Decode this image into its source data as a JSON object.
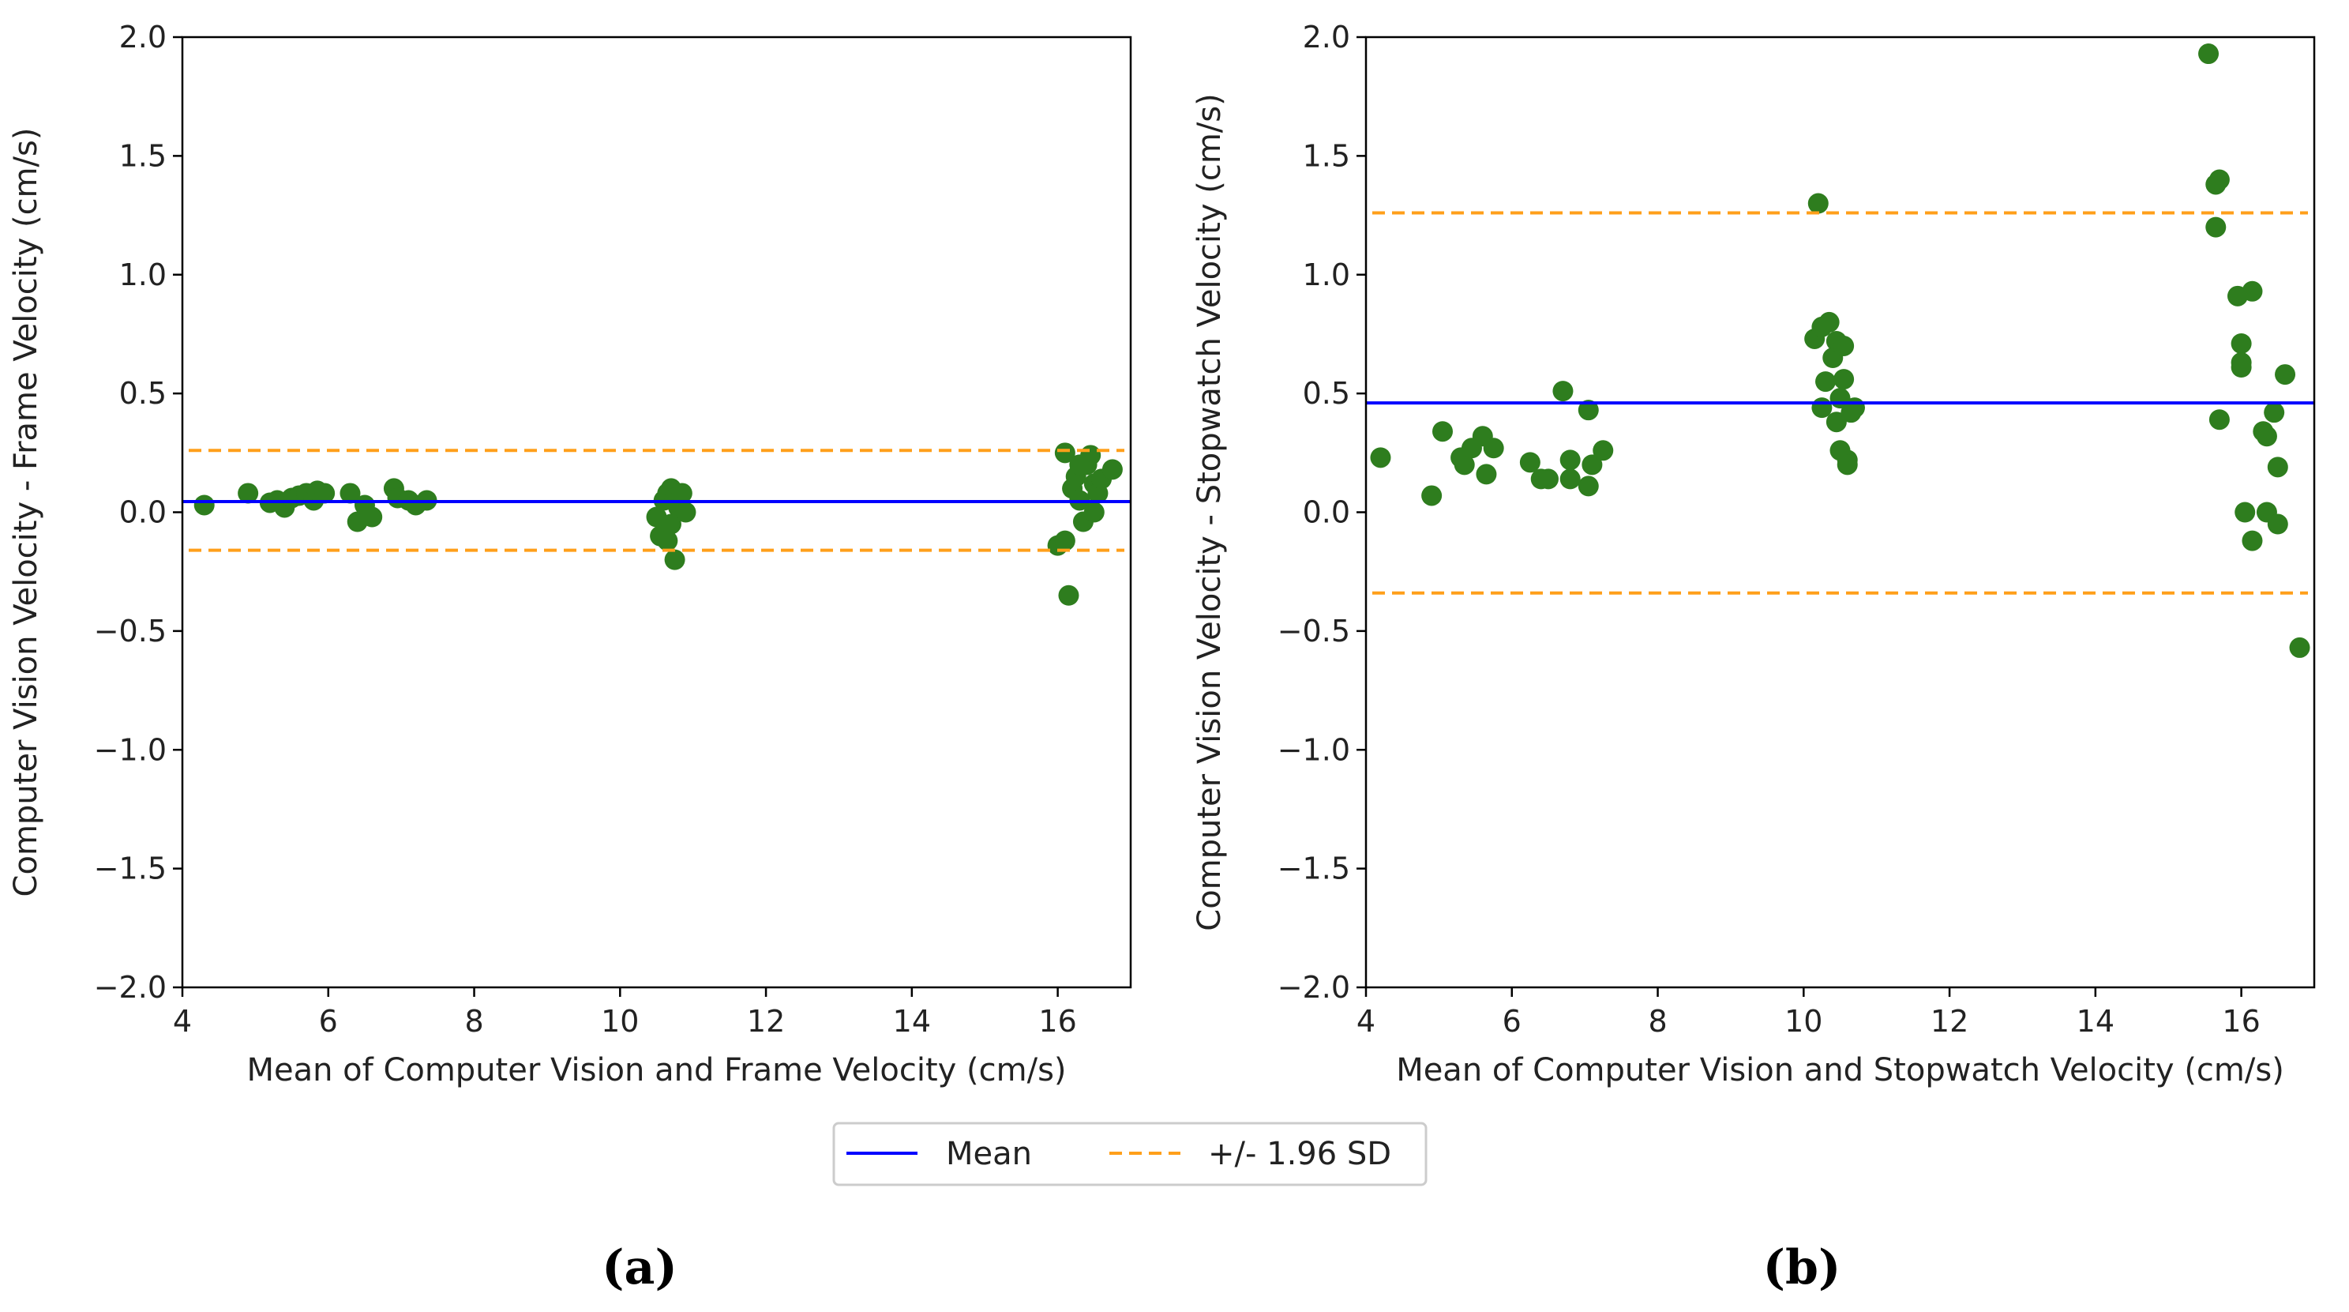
{
  "colors": {
    "mean": "#0000ff",
    "sd": "#ff9f1a",
    "points": "#2e7d1e"
  },
  "legend": {
    "mean_label": "Mean",
    "sd_label": "+/- 1.96 SD",
    "placement": "bottom-center"
  },
  "chart_data": [
    {
      "type": "scatter",
      "caption": "(a)",
      "xlabel": "Mean of Computer Vision and Frame Velocity (cm/s)",
      "ylabel": "Computer Vision Velocity - Frame Velocity (cm/s)",
      "xlim": [
        4,
        17
      ],
      "ylim": [
        -2,
        2
      ],
      "xticks": [
        "4",
        "6",
        "8",
        "10",
        "12",
        "14",
        "16"
      ],
      "yticks": [
        "2.0",
        "1.5",
        "1.0",
        "0.5",
        "0.0",
        "−0.5",
        "−1.0",
        "−1.5",
        "−2.0"
      ],
      "mean": 0.045,
      "upper_loa": 0.26,
      "lower_loa": -0.16,
      "points": [
        [
          4.3,
          0.03
        ],
        [
          4.9,
          0.08
        ],
        [
          5.2,
          0.04
        ],
        [
          5.3,
          0.05
        ],
        [
          5.4,
          0.02
        ],
        [
          5.5,
          0.06
        ],
        [
          5.6,
          0.07
        ],
        [
          5.7,
          0.08
        ],
        [
          5.8,
          0.05
        ],
        [
          5.85,
          0.09
        ],
        [
          5.95,
          0.08
        ],
        [
          6.3,
          0.08
        ],
        [
          6.4,
          -0.04
        ],
        [
          6.5,
          0.03
        ],
        [
          6.6,
          -0.02
        ],
        [
          6.9,
          0.1
        ],
        [
          6.95,
          0.06
        ],
        [
          7.1,
          0.05
        ],
        [
          7.2,
          0.03
        ],
        [
          7.35,
          0.05
        ],
        [
          10.5,
          -0.02
        ],
        [
          10.55,
          -0.1
        ],
        [
          10.6,
          0.05
        ],
        [
          10.65,
          0.08
        ],
        [
          10.7,
          -0.05
        ],
        [
          10.7,
          0.1
        ],
        [
          10.75,
          -0.2
        ],
        [
          10.75,
          0.06
        ],
        [
          10.8,
          0.02
        ],
        [
          10.85,
          0.08
        ],
        [
          10.9,
          0.0
        ],
        [
          10.65,
          -0.12
        ],
        [
          16.0,
          -0.14
        ],
        [
          16.1,
          -0.12
        ],
        [
          16.15,
          -0.35
        ],
        [
          16.1,
          0.25
        ],
        [
          16.2,
          0.1
        ],
        [
          16.25,
          0.15
        ],
        [
          16.3,
          0.05
        ],
        [
          16.35,
          -0.04
        ],
        [
          16.4,
          0.2
        ],
        [
          16.45,
          0.24
        ],
        [
          16.5,
          0.0
        ],
        [
          16.5,
          0.12
        ],
        [
          16.55,
          0.08
        ],
        [
          16.6,
          0.14
        ],
        [
          16.75,
          0.18
        ],
        [
          16.3,
          0.2
        ]
      ]
    },
    {
      "type": "scatter",
      "caption": "(b)",
      "xlabel": "Mean of Computer Vision and Stopwatch Velocity (cm/s)",
      "ylabel": "Computer Vision Velocity - Stopwatch Velocity (cm/s)",
      "xlim": [
        4,
        17
      ],
      "ylim": [
        -2,
        2
      ],
      "xticks": [
        "4",
        "6",
        "8",
        "10",
        "12",
        "14",
        "16"
      ],
      "yticks": [
        "2.0",
        "1.5",
        "1.0",
        "0.5",
        "0.0",
        "−0.5",
        "−1.0",
        "−1.5",
        "−2.0"
      ],
      "mean": 0.46,
      "upper_loa": 1.26,
      "lower_loa": -0.34,
      "points": [
        [
          4.2,
          0.23
        ],
        [
          4.9,
          0.07
        ],
        [
          5.05,
          0.34
        ],
        [
          5.3,
          0.23
        ],
        [
          5.35,
          0.2
        ],
        [
          5.45,
          0.27
        ],
        [
          5.6,
          0.32
        ],
        [
          5.65,
          0.16
        ],
        [
          5.75,
          0.27
        ],
        [
          6.25,
          0.21
        ],
        [
          6.4,
          0.14
        ],
        [
          6.5,
          0.14
        ],
        [
          6.7,
          0.51
        ],
        [
          6.8,
          0.22
        ],
        [
          6.8,
          0.14
        ],
        [
          7.05,
          0.43
        ],
        [
          7.05,
          0.11
        ],
        [
          7.1,
          0.2
        ],
        [
          7.25,
          0.26
        ],
        [
          10.15,
          0.73
        ],
        [
          10.2,
          1.3
        ],
        [
          10.25,
          0.78
        ],
        [
          10.25,
          0.44
        ],
        [
          10.3,
          0.55
        ],
        [
          10.35,
          0.8
        ],
        [
          10.4,
          0.65
        ],
        [
          10.45,
          0.72
        ],
        [
          10.45,
          0.38
        ],
        [
          10.5,
          0.48
        ],
        [
          10.5,
          0.26
        ],
        [
          10.55,
          0.7
        ],
        [
          10.55,
          0.56
        ],
        [
          10.6,
          0.22
        ],
        [
          10.6,
          0.2
        ],
        [
          10.65,
          0.42
        ],
        [
          10.7,
          0.44
        ],
        [
          15.55,
          1.93
        ],
        [
          15.65,
          1.38
        ],
        [
          15.7,
          1.4
        ],
        [
          15.65,
          1.2
        ],
        [
          15.7,
          0.39
        ],
        [
          15.95,
          0.91
        ],
        [
          16.0,
          0.71
        ],
        [
          16.0,
          0.63
        ],
        [
          16.0,
          0.61
        ],
        [
          16.05,
          0.0
        ],
        [
          16.15,
          0.93
        ],
        [
          16.15,
          -0.12
        ],
        [
          16.3,
          0.34
        ],
        [
          16.35,
          0.32
        ],
        [
          16.35,
          0.0
        ],
        [
          16.45,
          0.42
        ],
        [
          16.5,
          -0.05
        ],
        [
          16.5,
          0.19
        ],
        [
          16.6,
          0.58
        ],
        [
          16.8,
          -0.57
        ]
      ]
    }
  ]
}
